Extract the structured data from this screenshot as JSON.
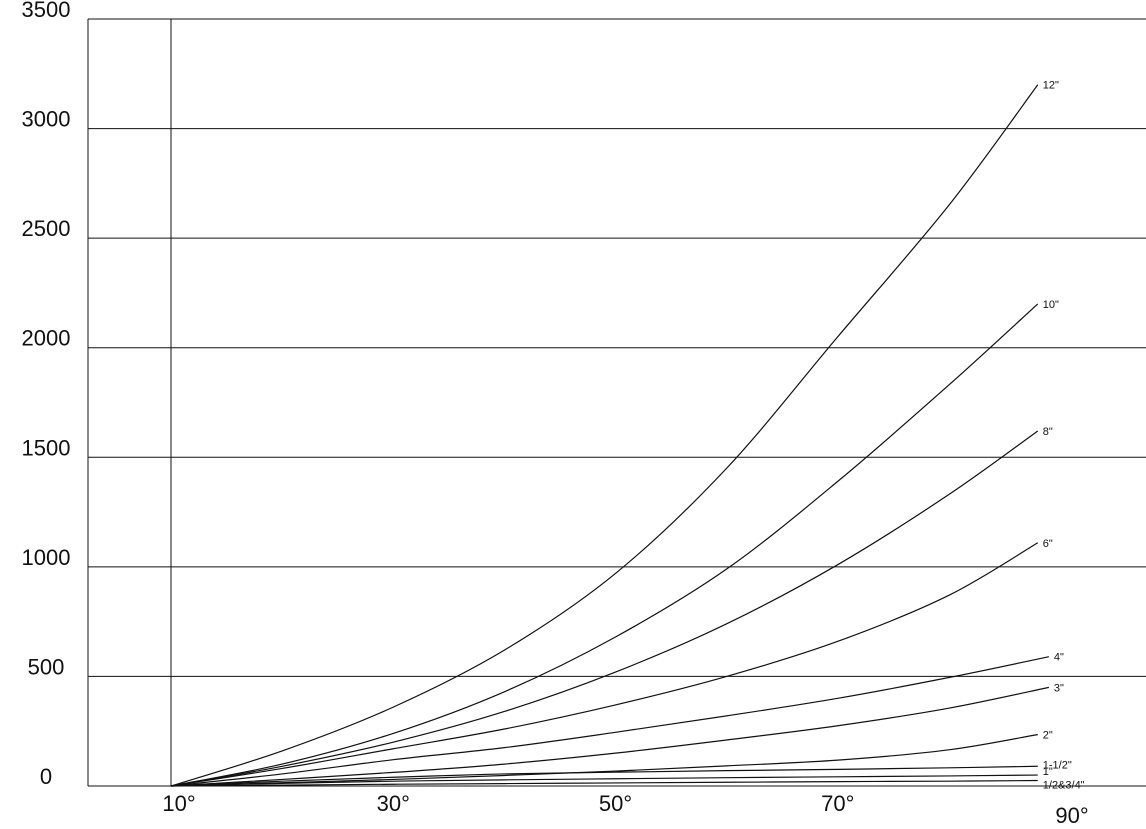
{
  "chart_data": {
    "type": "line",
    "title": "",
    "xlabel": "",
    "ylabel": "",
    "x_ticks": [
      "10°",
      "30°",
      "50°",
      "70°",
      "90°"
    ],
    "y_ticks": [
      "0",
      "500",
      "1000",
      "1500",
      "2000",
      "2500",
      "3000",
      "3500"
    ],
    "xlim": [
      10,
      90
    ],
    "ylim": [
      0,
      3500
    ],
    "grid": {
      "horizontal": true,
      "vertical": false
    },
    "legend": "none",
    "line_color": "#111111",
    "series": [
      {
        "name": "12\"",
        "x": [
          10,
          20,
          30,
          40,
          50,
          60,
          70,
          80,
          88
        ],
        "y": [
          0,
          160,
          360,
          620,
          970,
          1450,
          2050,
          2650,
          3200
        ]
      },
      {
        "name": "10\"",
        "x": [
          10,
          20,
          30,
          40,
          50,
          60,
          70,
          80,
          88
        ],
        "y": [
          0,
          100,
          240,
          430,
          680,
          990,
          1390,
          1830,
          2200
        ]
      },
      {
        "name": "8\"",
        "x": [
          10,
          20,
          30,
          40,
          50,
          60,
          70,
          80,
          88
        ],
        "y": [
          0,
          90,
          200,
          340,
          520,
          740,
          1010,
          1330,
          1620
        ]
      },
      {
        "name": "6\"",
        "x": [
          10,
          20,
          30,
          40,
          50,
          60,
          70,
          80,
          88
        ],
        "y": [
          0,
          80,
          170,
          260,
          370,
          500,
          660,
          870,
          1110
        ]
      },
      {
        "name": "4\"",
        "x": [
          10,
          20,
          30,
          40,
          50,
          60,
          70,
          80,
          89
        ],
        "y": [
          0,
          55,
          120,
          175,
          245,
          320,
          400,
          495,
          590
        ]
      },
      {
        "name": "3\"",
        "x": [
          10,
          20,
          30,
          40,
          50,
          60,
          70,
          80,
          89
        ],
        "y": [
          0,
          30,
          62,
          100,
          150,
          210,
          275,
          355,
          450
        ]
      },
      {
        "name": "2\"",
        "x": [
          10,
          20,
          30,
          40,
          50,
          60,
          70,
          80,
          88
        ],
        "y": [
          0,
          15,
          30,
          48,
          68,
          92,
          118,
          165,
          235
        ]
      },
      {
        "name": "1-1/2\"",
        "x": [
          10,
          20,
          30,
          40,
          50,
          60,
          70,
          80,
          88
        ],
        "y": [
          0,
          22,
          40,
          55,
          63,
          70,
          76,
          83,
          90
        ]
      },
      {
        "name": "1\"",
        "x": [
          10,
          20,
          30,
          40,
          50,
          60,
          70,
          80,
          88
        ],
        "y": [
          0,
          12,
          22,
          28,
          33,
          38,
          42,
          46,
          50
        ]
      },
      {
        "name": "1/2&3/4\"",
        "x": [
          10,
          20,
          30,
          40,
          50,
          60,
          70,
          80,
          88
        ],
        "y": [
          0,
          4,
          8,
          11,
          14,
          17,
          20,
          22,
          25
        ]
      }
    ]
  }
}
